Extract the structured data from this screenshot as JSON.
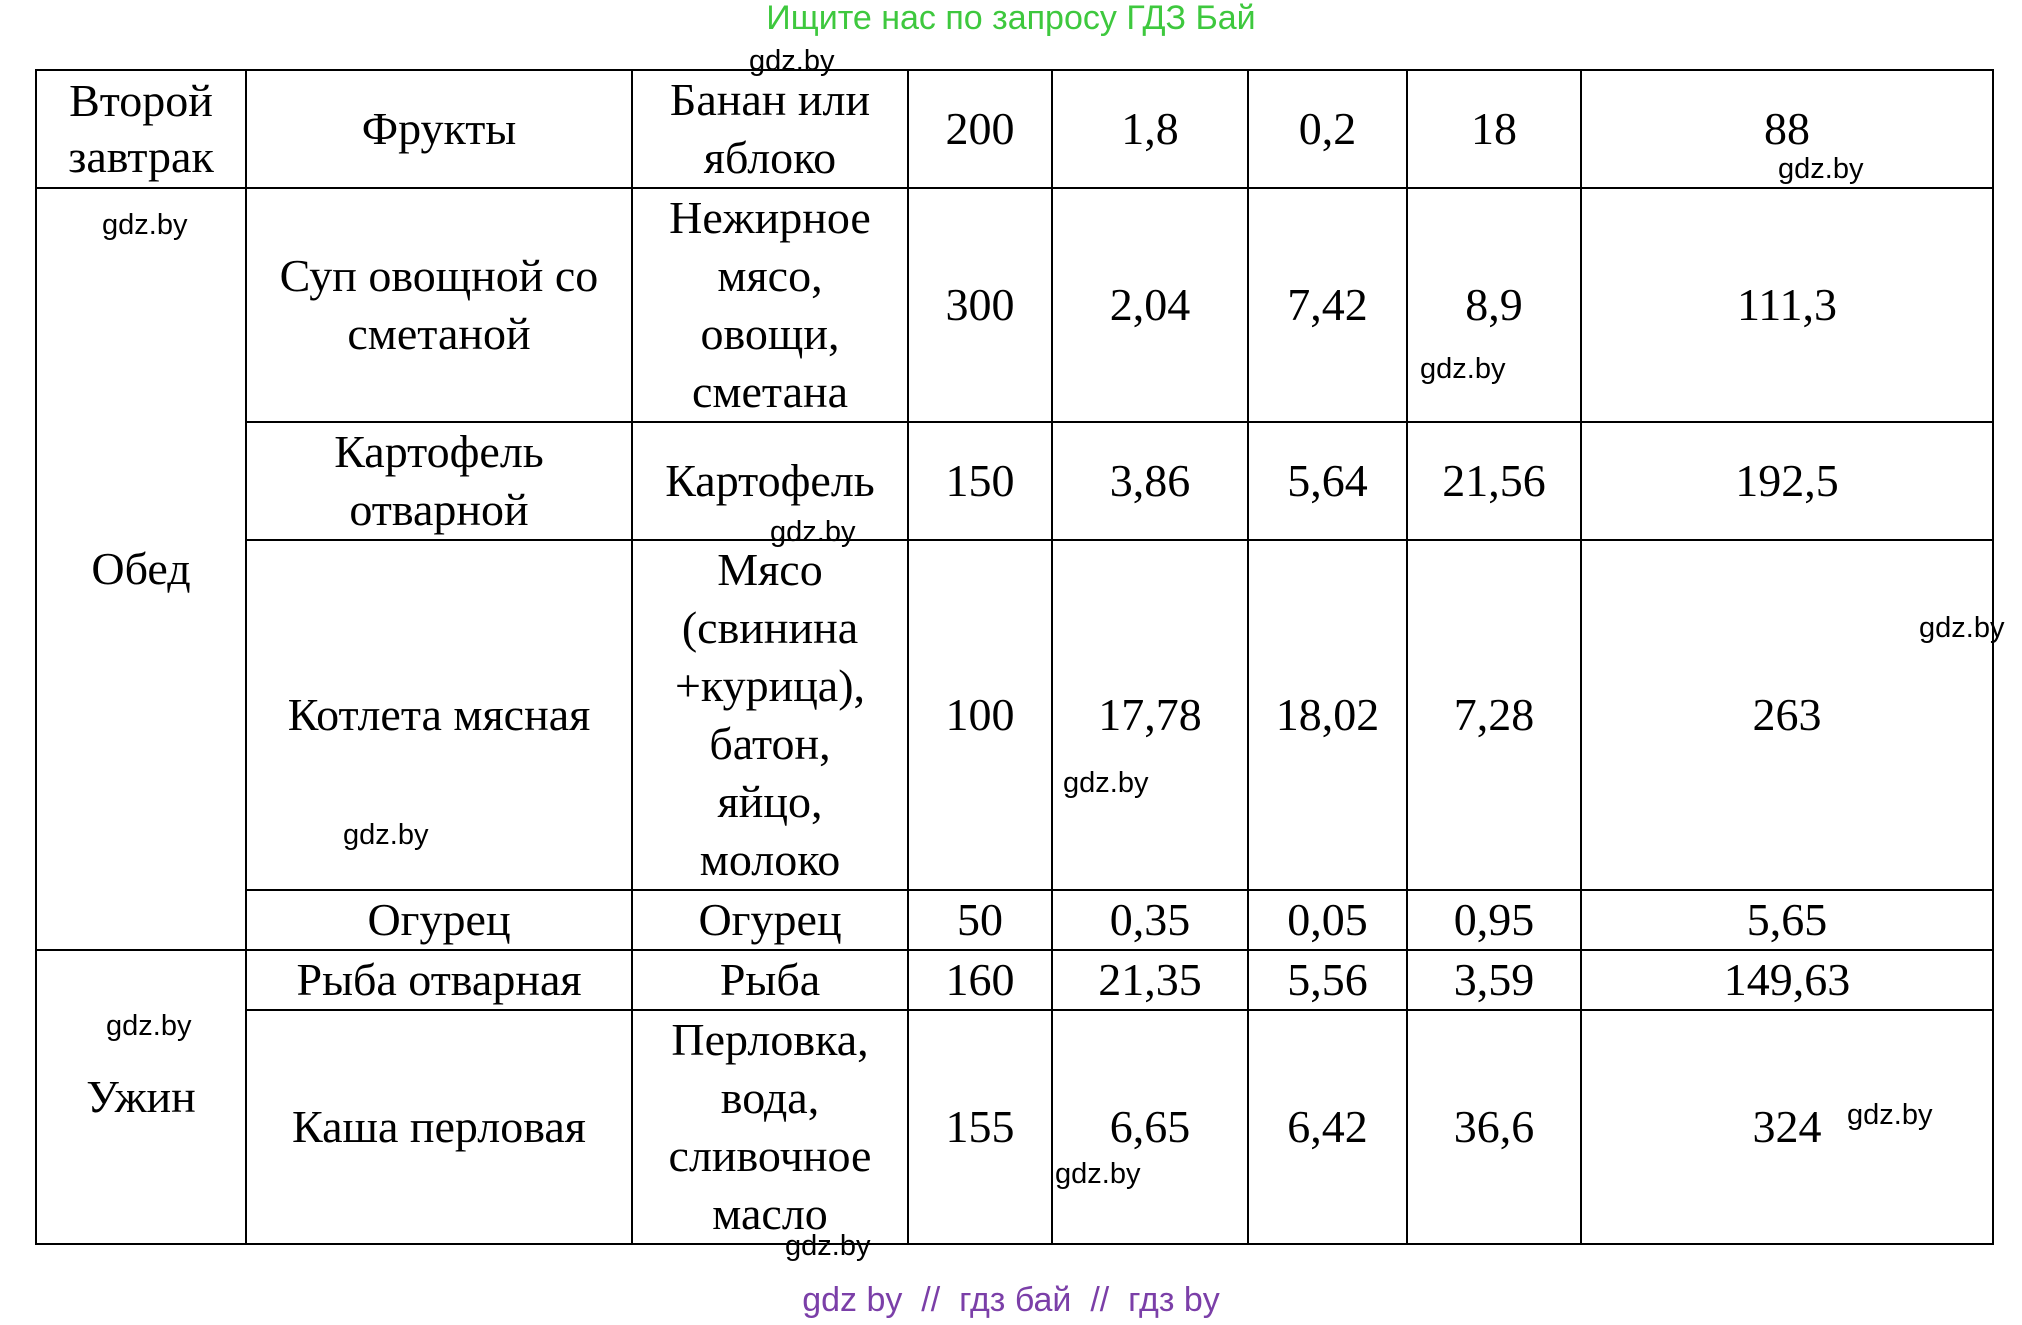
{
  "header": "Ищите нас по запросу ГДЗ Бай",
  "footer": "gdz by  //  гдз бай  //  гдз by",
  "watermark": "gdz.by",
  "colors": {
    "header": "#3ec83e",
    "footer": "#7b3fa8"
  },
  "table": {
    "rows": [
      {
        "meal": "Второй завтрак",
        "dish": "Фрукты",
        "ingredients": "Банан или яблоко",
        "mass": "200",
        "protein": "1,8",
        "fat": "0,2",
        "carbs": "18",
        "kcal": "88"
      },
      {
        "meal": "Обед",
        "dish": "Суп овощной со сметаной",
        "ingredients": "Нежирное мясо, овощи, сметана",
        "mass": "300",
        "protein": "2,04",
        "fat": "7,42",
        "carbs": "8,9",
        "kcal": "111,3"
      },
      {
        "dish": "Картофель отварной",
        "ingredients": "Картофель",
        "mass": "150",
        "protein": "3,86",
        "fat": "5,64",
        "carbs": "21,56",
        "kcal": "192,5"
      },
      {
        "dish": "Котлета мясная",
        "ingredients": "Мясо (свинина +курица), батон, яйцо, молоко",
        "mass": "100",
        "protein": "17,78",
        "fat": "18,02",
        "carbs": "7,28",
        "kcal": "263"
      },
      {
        "dish": "Огурец",
        "ingredients": "Огурец",
        "mass": "50",
        "protein": "0,35",
        "fat": "0,05",
        "carbs": "0,95",
        "kcal": "5,65"
      },
      {
        "meal": "Ужин",
        "dish": "Рыба отварная",
        "ingredients": "Рыба",
        "mass": "160",
        "protein": "21,35",
        "fat": "5,56",
        "carbs": "3,59",
        "kcal": "149,63"
      },
      {
        "dish": "Каша перловая",
        "ingredients": "Перловка, вода, сливочное масло",
        "mass": "155",
        "protein": "6,65",
        "fat": "6,42",
        "carbs": "36,6",
        "kcal": "324"
      }
    ]
  }
}
